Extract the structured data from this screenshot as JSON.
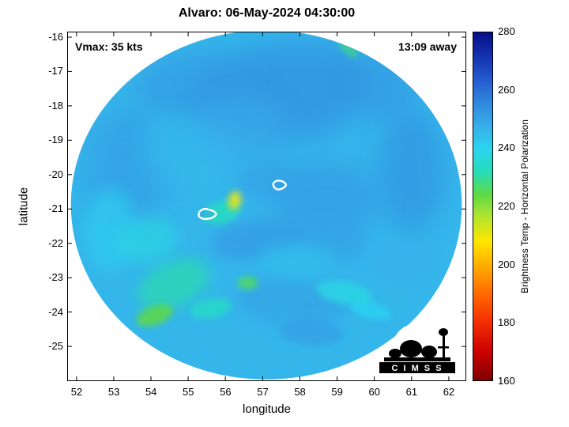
{
  "title": "Alvaro: 06-May-2024 04:30:00",
  "annotations": {
    "vmax": "Vmax: 35 kts",
    "time_away": "13:09 away"
  },
  "axes": {
    "x": {
      "label": "longitude",
      "ticks": [
        "52",
        "53",
        "54",
        "55",
        "56",
        "57",
        "58",
        "59",
        "60",
        "61",
        "62"
      ]
    },
    "y": {
      "label": "latitude",
      "ticks": [
        "-16",
        "-17",
        "-18",
        "-19",
        "-20",
        "-21",
        "-22",
        "-23",
        "-24",
        "-25"
      ]
    }
  },
  "colorbar": {
    "label": "Brightness Temp - Horizontal Polarization",
    "ticks": [
      "280",
      "260",
      "240",
      "220",
      "200",
      "180",
      "160"
    ]
  },
  "logo": {
    "text": "C I M S S"
  },
  "chart_data": {
    "type": "heatmap",
    "title": "Alvaro: 06-May-2024 04:30:00",
    "storm": {
      "name": "Alvaro",
      "datetime": "06-May-2024 04:30:00",
      "vmax_kts": 35,
      "time_offset_label": "13:09 away"
    },
    "xlabel": "longitude",
    "ylabel": "latitude",
    "xlim": [
      51.75,
      62.47
    ],
    "ylim": [
      -26.01,
      -15.84
    ],
    "xticks": [
      52,
      53,
      54,
      55,
      56,
      57,
      58,
      59,
      60,
      61,
      62
    ],
    "yticks": [
      -16,
      -17,
      -18,
      -19,
      -20,
      -21,
      -22,
      -23,
      -24,
      -25
    ],
    "colorbar": {
      "label": "Brightness Temp - Horizontal Polarization",
      "range": [
        160,
        280
      ],
      "ticks": [
        160,
        180,
        200,
        220,
        240,
        260,
        280
      ],
      "colormap_stops": [
        {
          "t": 160,
          "c": "#7f0000"
        },
        {
          "t": 170,
          "c": "#cc0000"
        },
        {
          "t": 180,
          "c": "#f42d00"
        },
        {
          "t": 190,
          "c": "#ff6a00"
        },
        {
          "t": 200,
          "c": "#ffb000"
        },
        {
          "t": 208,
          "c": "#ffe600"
        },
        {
          "t": 216,
          "c": "#b5e62e"
        },
        {
          "t": 224,
          "c": "#5fd944"
        },
        {
          "t": 232,
          "c": "#25ddb9"
        },
        {
          "t": 240,
          "c": "#2cd2f0"
        },
        {
          "t": 248,
          "c": "#38ace9"
        },
        {
          "t": 256,
          "c": "#2f86dd"
        },
        {
          "t": 264,
          "c": "#2458cf"
        },
        {
          "t": 272,
          "c": "#1430ae"
        },
        {
          "t": 280,
          "c": "#051089"
        }
      ]
    },
    "swath": {
      "center_lon": 57.1,
      "center_lat": -20.88,
      "radius_lon": 5.25,
      "radius_lat": 5.08,
      "base_temp": 246
    },
    "features": [
      {
        "lon": 57.6,
        "lat": -17.6,
        "temp": 255,
        "rx": 120,
        "ry": 62,
        "rot": -8,
        "blur": "l"
      },
      {
        "lon": 55.2,
        "lat": -17.4,
        "temp": 252,
        "rx": 78,
        "ry": 42,
        "rot": 0,
        "blur": "l"
      },
      {
        "lon": 53.3,
        "lat": -19.9,
        "temp": 251,
        "rx": 52,
        "ry": 80,
        "rot": 0,
        "blur": "l"
      },
      {
        "lon": 61.0,
        "lat": -19.9,
        "temp": 254,
        "rx": 42,
        "ry": 78,
        "rot": 0,
        "blur": "l"
      },
      {
        "lon": 60.4,
        "lat": -17.4,
        "temp": 252,
        "rx": 40,
        "ry": 48,
        "rot": 0,
        "blur": "l"
      },
      {
        "lon": 58.7,
        "lat": -20.7,
        "temp": 252,
        "rx": 68,
        "ry": 48,
        "rot": 0,
        "blur": "l"
      },
      {
        "lon": 55.0,
        "lat": -19.3,
        "temp": 245,
        "rx": 58,
        "ry": 40,
        "rot": 0,
        "blur": "l"
      },
      {
        "lon": 56.4,
        "lat": -18.7,
        "temp": 248,
        "rx": 58,
        "ry": 42,
        "rot": 0,
        "blur": "l"
      },
      {
        "lon": 57.2,
        "lat": -20.2,
        "temp": 250,
        "rx": 42,
        "ry": 28,
        "rot": 0,
        "blur": "m"
      },
      {
        "lon": 56.9,
        "lat": -21.9,
        "temp": 252,
        "rx": 62,
        "ry": 26,
        "rot": -5,
        "blur": "m"
      },
      {
        "lon": 52.9,
        "lat": -21.6,
        "temp": 241,
        "rx": 32,
        "ry": 52,
        "rot": 0,
        "blur": "m"
      },
      {
        "lon": 54.6,
        "lat": -23.2,
        "temp": 231,
        "rx": 48,
        "ry": 28,
        "rot": -25,
        "blur": "m"
      },
      {
        "lon": 53.9,
        "lat": -21.9,
        "temp": 238,
        "rx": 38,
        "ry": 28,
        "rot": -10,
        "blur": "m"
      },
      {
        "lon": 57.8,
        "lat": -23.7,
        "temp": 250,
        "rx": 72,
        "ry": 32,
        "rot": 5,
        "blur": "m"
      },
      {
        "lon": 58.9,
        "lat": -21.9,
        "temp": 250,
        "rx": 42,
        "ry": 32,
        "rot": 0,
        "blur": "m"
      },
      {
        "lon": 60.8,
        "lat": -22.5,
        "temp": 247,
        "rx": 36,
        "ry": 26,
        "rot": 0,
        "blur": "m"
      },
      {
        "lon": 57.9,
        "lat": -22.5,
        "temp": 244,
        "rx": 50,
        "ry": 20,
        "rot": 0,
        "blur": "m"
      },
      {
        "lon": 55.9,
        "lat": -21.1,
        "temp": 233,
        "rx": 24,
        "ry": 14,
        "rot": -15,
        "blur": "s"
      },
      {
        "lon": 56.25,
        "lat": -20.75,
        "temp": 210,
        "rx": 8,
        "ry": 12,
        "rot": 10,
        "blur": "s"
      },
      {
        "lon": 54.1,
        "lat": -24.1,
        "temp": 224,
        "rx": 24,
        "ry": 12,
        "rot": -20,
        "blur": "s"
      },
      {
        "lon": 55.6,
        "lat": -23.9,
        "temp": 234,
        "rx": 26,
        "ry": 12,
        "rot": -10,
        "blur": "s"
      },
      {
        "lon": 56.6,
        "lat": -23.15,
        "temp": 226,
        "rx": 13,
        "ry": 8,
        "rot": 0,
        "blur": "s"
      },
      {
        "lon": 59.2,
        "lat": -23.45,
        "temp": 238,
        "rx": 36,
        "ry": 14,
        "rot": 12,
        "blur": "s"
      },
      {
        "lon": 59.9,
        "lat": -23.95,
        "temp": 240,
        "rx": 26,
        "ry": 10,
        "rot": 15,
        "blur": "s"
      },
      {
        "lon": 59.3,
        "lat": -16.35,
        "temp": 228,
        "rx": 15,
        "ry": 5,
        "rot": 40,
        "blur": "s"
      },
      {
        "lon": 58.3,
        "lat": -24.6,
        "temp": 250,
        "rx": 40,
        "ry": 16,
        "rot": 5,
        "blur": "s"
      }
    ],
    "contours": [
      {
        "lon": 57.45,
        "lat": -20.3,
        "rx": 8,
        "ry": 5.5
      },
      {
        "lon": 55.5,
        "lat": -21.15,
        "rx": 11,
        "ry": 6.5
      }
    ]
  }
}
